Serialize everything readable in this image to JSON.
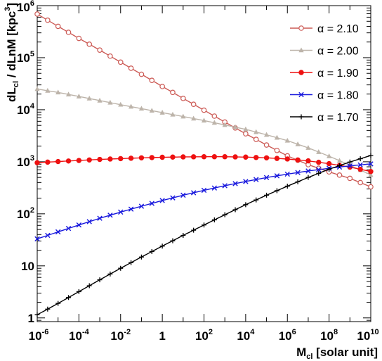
{
  "chart_data": {
    "type": "line",
    "title": "",
    "xlabel": "M_cl [solar unit]",
    "xlabel_parts": {
      "main": "M",
      "sub": "cl",
      "rest": " [solar unit]"
    },
    "ylabel": "dL_cl / dLnM  [kpc^3]",
    "ylabel_parts": {
      "a": "dL",
      "sub": "cl",
      "b": " / dLnM  [kpc",
      "sup": "3",
      "c": "]"
    },
    "xscale": "log",
    "yscale": "log",
    "xlim": [
      1e-06,
      10000000000.0
    ],
    "ylim": [
      0.85,
      1000000
    ],
    "grid": false,
    "legend_position": "top-right",
    "x_ticks": [
      {
        "value": 1e-06,
        "base": "10",
        "exp": "-6"
      },
      {
        "value": 0.0001,
        "base": "10",
        "exp": "-4"
      },
      {
        "value": 0.01,
        "base": "10",
        "exp": "-2"
      },
      {
        "value": 1,
        "base": "1",
        "exp": ""
      },
      {
        "value": 100,
        "base": "10",
        "exp": "2"
      },
      {
        "value": 10000.0,
        "base": "10",
        "exp": "4"
      },
      {
        "value": 1000000.0,
        "base": "10",
        "exp": "6"
      },
      {
        "value": 100000000.0,
        "base": "10",
        "exp": "8"
      },
      {
        "value": 10000000000.0,
        "base": "10",
        "exp": "10"
      }
    ],
    "y_ticks": [
      {
        "value": 1,
        "base": "1",
        "exp": ""
      },
      {
        "value": 10,
        "base": "10",
        "exp": ""
      },
      {
        "value": 100,
        "base": "10",
        "exp": "2"
      },
      {
        "value": 1000,
        "base": "10",
        "exp": "3"
      },
      {
        "value": 10000,
        "base": "10",
        "exp": "4"
      },
      {
        "value": 100000,
        "base": "10",
        "exp": "5"
      },
      {
        "value": 1000000,
        "base": "10",
        "exp": "6"
      }
    ],
    "series": [
      {
        "name": "α = 2.10",
        "color": "#cc5a55",
        "marker": "open-circle",
        "x": [
          1e-06,
          1e-05,
          0.0001,
          0.001,
          0.01,
          0.1,
          1,
          10,
          100,
          1000.0,
          10000.0,
          100000.0,
          1000000.0,
          10000000.0,
          100000000.0,
          1000000000.0,
          10000000000.0
        ],
        "y": [
          690000,
          400000,
          235000,
          140000,
          82000,
          48000,
          28000,
          16500,
          9800,
          5800,
          3450,
          2100,
          1300,
          880,
          640,
          480,
          330
        ]
      },
      {
        "name": "α = 2.00",
        "color": "#bdb4aa",
        "marker": "filled-triangle",
        "x": [
          1e-06,
          1e-05,
          0.0001,
          0.001,
          0.01,
          0.1,
          1,
          10,
          100,
          1000.0,
          10000.0,
          100000.0,
          1000000.0,
          10000000.0,
          100000000.0,
          1000000000.0,
          10000000000.0
        ],
        "y": [
          25000,
          21500,
          18000,
          15000,
          12500,
          10500,
          8800,
          7400,
          6200,
          5100,
          4200,
          3300,
          2550,
          1850,
          1280,
          860,
          560
        ]
      },
      {
        "name": "α = 1.90",
        "color": "#ee1111",
        "marker": "filled-circle",
        "x": [
          1e-06,
          1e-05,
          0.0001,
          0.001,
          0.01,
          0.1,
          1,
          10,
          100,
          1000.0,
          10000.0,
          100000.0,
          1000000.0,
          10000000.0,
          100000000.0,
          1000000000.0,
          10000000000.0
        ],
        "y": [
          960,
          1010,
          1060,
          1110,
          1150,
          1190,
          1220,
          1240,
          1250,
          1250,
          1230,
          1190,
          1130,
          1040,
          920,
          790,
          650
        ]
      },
      {
        "name": "α = 1.80",
        "color": "#1818dd",
        "marker": "cross",
        "x": [
          1e-06,
          1e-05,
          0.0001,
          0.001,
          0.01,
          0.1,
          1,
          10,
          100,
          1000.0,
          10000.0,
          100000.0,
          1000000.0,
          10000000.0,
          100000000.0,
          1000000000.0,
          10000000000.0
        ],
        "y": [
          33,
          45,
          61,
          82,
          108,
          140,
          180,
          228,
          283,
          347,
          418,
          497,
          580,
          665,
          750,
          835,
          910
        ]
      },
      {
        "name": "α = 1.70",
        "color": "#000000",
        "marker": "plus",
        "x": [
          1e-06,
          1e-05,
          0.0001,
          0.001,
          0.01,
          0.1,
          1,
          10,
          100,
          1000.0,
          10000.0,
          100000.0,
          1000000.0,
          10000000.0,
          100000000.0,
          1000000000.0,
          10000000000.0
        ],
        "y": [
          1.15,
          1.9,
          3.2,
          5.4,
          9.0,
          14.8,
          24,
          38.5,
          61,
          96,
          150,
          228,
          340,
          500,
          720,
          990,
          1320
        ]
      }
    ]
  }
}
